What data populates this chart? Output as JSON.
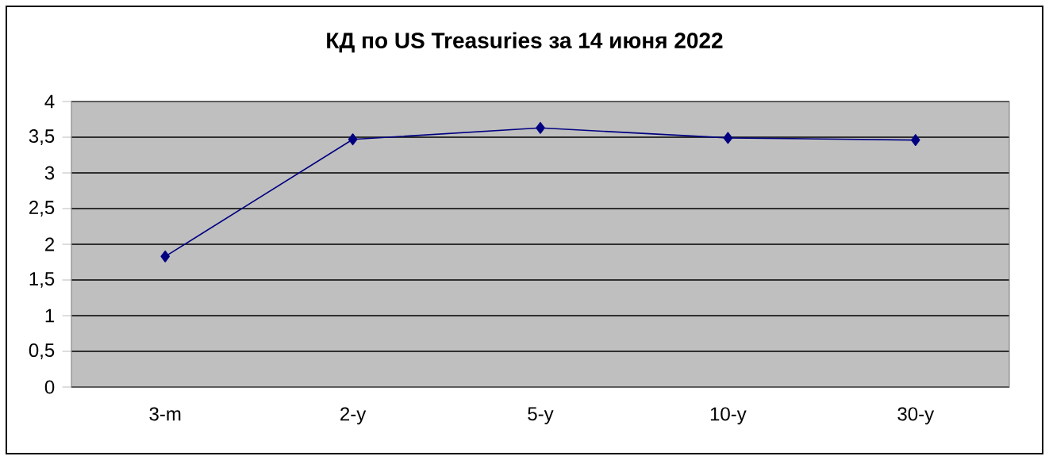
{
  "chart_data": {
    "type": "line",
    "title": "КД по US Treasuries за 14 июня 2022",
    "categories": [
      "3-m",
      "2-y",
      "5-y",
      "10-y",
      "30-y"
    ],
    "series": [
      {
        "color": "#000080",
        "values": [
          1.83,
          3.47,
          3.63,
          3.49,
          3.46
        ]
      }
    ],
    "ylim": [
      0,
      4
    ],
    "yticks": [
      0,
      {
        "value": 0.5,
        "label": "0,5"
      },
      1,
      {
        "value": 1.5,
        "label": "1,5"
      },
      2,
      {
        "value": 2.5,
        "label": "2,5"
      },
      3,
      {
        "value": 3.5,
        "label": "3,5"
      },
      4
    ],
    "grid": "y",
    "marker": "diamond",
    "line_style": "solid"
  }
}
